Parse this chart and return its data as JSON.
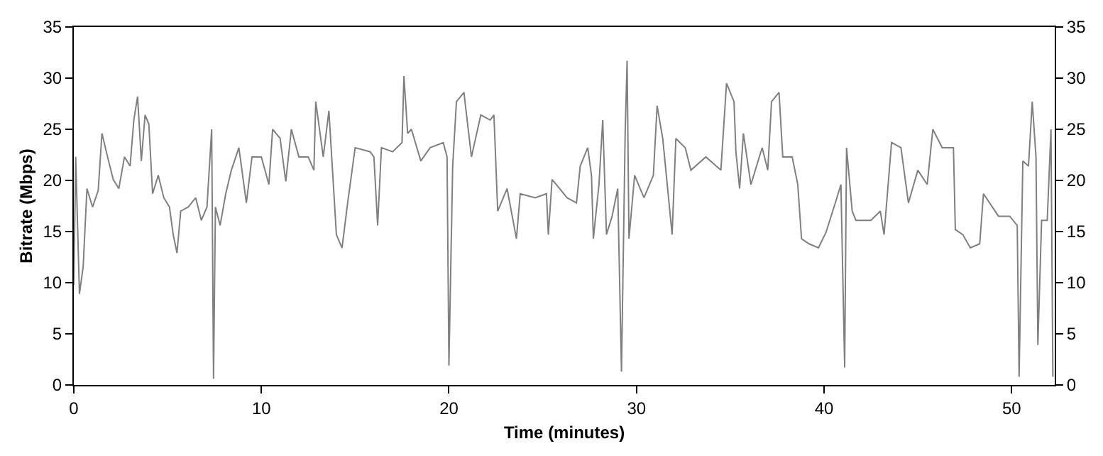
{
  "chart_data": {
    "type": "line",
    "xlabel": "Time (minutes)",
    "ylabel": "Bitrate (Mbps)",
    "xlim": [
      0,
      52.3
    ],
    "xticks": [
      0,
      10,
      20,
      30,
      40,
      50
    ],
    "ylim": [
      0,
      35
    ],
    "yticks": [
      0,
      5,
      10,
      15,
      20,
      25,
      30,
      35
    ],
    "y2lim": [
      0,
      35
    ],
    "y2ticks": [
      0,
      5,
      10,
      15,
      20,
      25,
      30,
      35
    ],
    "marker": "none",
    "line_style": "solid",
    "series": [
      {
        "color": "#808080",
        "x": [
          0,
          0.1,
          0.3,
          0.5,
          0.7,
          1.0,
          1.3,
          1.5,
          1.8,
          2.1,
          2.4,
          2.7,
          3.0,
          3.2,
          3.4,
          3.6,
          3.8,
          4.0,
          4.2,
          4.5,
          4.8,
          5.1,
          5.3,
          5.5,
          5.7,
          6.1,
          6.5,
          6.8,
          7.1,
          7.35,
          7.45,
          7.55,
          7.8,
          8.1,
          8.4,
          8.8,
          9.2,
          9.5,
          10.0,
          10.4,
          10.6,
          11.0,
          11.3,
          11.6,
          12.0,
          12.5,
          12.8,
          12.9,
          13.3,
          13.6,
          14.0,
          14.3,
          14.6,
          15.0,
          15.8,
          16.0,
          16.2,
          16.4,
          17.0,
          17.5,
          17.6,
          17.8,
          18.0,
          18.5,
          19.0,
          19.7,
          19.9,
          20.0,
          20.2,
          20.4,
          20.8,
          21.2,
          21.7,
          22.2,
          22.4,
          22.6,
          23.1,
          23.6,
          23.8,
          24.6,
          25.2,
          25.3,
          25.5,
          26.3,
          26.8,
          27.0,
          27.4,
          27.6,
          27.7,
          28.0,
          28.2,
          28.4,
          28.7,
          29.0,
          29.2,
          29.4,
          29.5,
          29.6,
          29.9,
          30.4,
          30.9,
          31.1,
          31.4,
          31.9,
          32.1,
          32.6,
          32.9,
          33.7,
          34.5,
          34.8,
          35.2,
          35.3,
          35.5,
          35.7,
          36.1,
          36.7,
          37.0,
          37.2,
          37.6,
          37.8,
          38.3,
          38.6,
          38.8,
          39.2,
          39.7,
          40.1,
          40.6,
          40.9,
          41.1,
          41.2,
          41.5,
          41.7,
          42.5,
          43.0,
          43.2,
          43.6,
          44.1,
          44.5,
          45.0,
          45.5,
          45.8,
          46.3,
          46.9,
          47.0,
          47.4,
          47.8,
          48.3,
          48.5,
          49.3,
          49.9,
          50.3,
          50.4,
          50.6,
          50.9,
          51.1,
          51.3,
          51.4,
          51.6,
          51.9,
          52.1,
          52.2
        ],
        "values": [
          9.8,
          22.3,
          8.9,
          11.6,
          19.2,
          17.4,
          19,
          24.6,
          22.3,
          20.1,
          19.2,
          22.3,
          21.4,
          25.9,
          28.2,
          21.9,
          26.4,
          25.5,
          18.7,
          20.5,
          18.3,
          17.4,
          14.7,
          12.9,
          17,
          17.4,
          18.3,
          16.1,
          17.4,
          25,
          0.6,
          17.4,
          15.6,
          18.7,
          21,
          23.2,
          17.8,
          22.3,
          22.3,
          19.6,
          25,
          24.1,
          19.9,
          25,
          22.3,
          22.3,
          21,
          27.7,
          22.3,
          26.8,
          14.7,
          13.4,
          17.8,
          23.2,
          22.8,
          22.3,
          15.6,
          23.2,
          22.8,
          23.7,
          30.2,
          24.6,
          25,
          21.9,
          23.2,
          23.7,
          22.3,
          1.9,
          21.4,
          27.7,
          28.6,
          22.3,
          26.4,
          25.9,
          26.4,
          17,
          19.2,
          14.3,
          18.7,
          18.3,
          18.7,
          14.7,
          20.1,
          18.3,
          17.8,
          21.4,
          23.2,
          20.5,
          14.3,
          19.6,
          25.9,
          14.7,
          16.5,
          19.2,
          1.3,
          25,
          31.7,
          14.3,
          20.5,
          18.3,
          20.5,
          27.3,
          24.1,
          14.7,
          24.1,
          23.2,
          21,
          22.3,
          21,
          29.5,
          27.7,
          22.8,
          19.2,
          24.6,
          19.6,
          23.2,
          21,
          27.7,
          28.6,
          22.3,
          22.3,
          19.6,
          14.3,
          13.8,
          13.4,
          14.9,
          17.8,
          19.6,
          1.7,
          23.2,
          17,
          16.1,
          16.1,
          17,
          14.7,
          23.7,
          23.2,
          17.8,
          21,
          19.6,
          25,
          23.2,
          23.2,
          15.2,
          14.7,
          13.4,
          13.8,
          18.7,
          16.5,
          16.5,
          15.6,
          0.8,
          21.9,
          21.4,
          27.7,
          22.3,
          3.9,
          16.1,
          16.1,
          25,
          0.8
        ]
      }
    ]
  }
}
